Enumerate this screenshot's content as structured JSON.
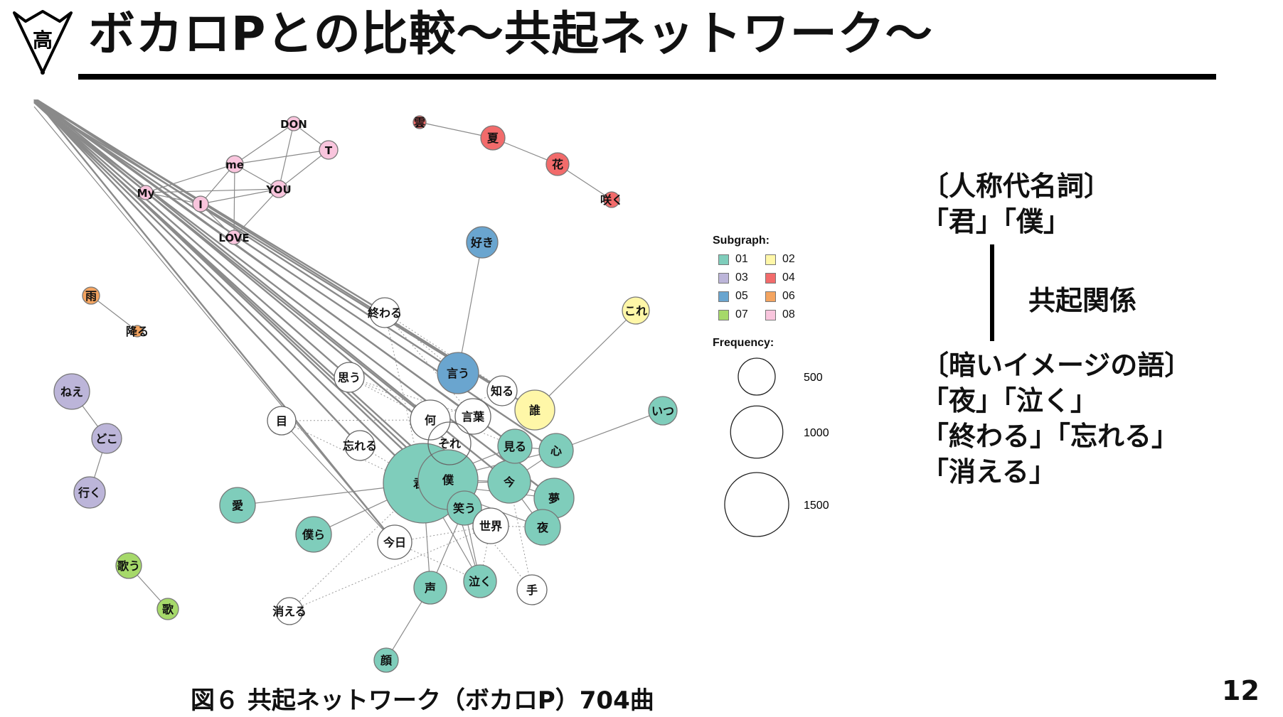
{
  "header": {
    "logo_char": "高",
    "title": "ボカロPとの比較〜共起ネットワーク〜"
  },
  "network": {
    "nodes": [
      {
        "id": "kimi",
        "label": "君",
        "group": "01"
      },
      {
        "id": "boku",
        "label": "僕",
        "group": "01"
      },
      {
        "id": "warau",
        "label": "笑う",
        "group": "01"
      },
      {
        "id": "ima",
        "label": "今",
        "group": "01"
      },
      {
        "id": "miru",
        "label": "見る",
        "group": "01"
      },
      {
        "id": "kokoro",
        "label": "心",
        "group": "01"
      },
      {
        "id": "yume",
        "label": "夢",
        "group": "01"
      },
      {
        "id": "yoru",
        "label": "夜",
        "group": "01"
      },
      {
        "id": "naku",
        "label": "泣く",
        "group": "01"
      },
      {
        "id": "koe",
        "label": "声",
        "group": "01"
      },
      {
        "id": "ai",
        "label": "愛",
        "group": "01"
      },
      {
        "id": "bokura",
        "label": "僕ら",
        "group": "01"
      },
      {
        "id": "itsu",
        "label": "いつ",
        "group": "01"
      },
      {
        "id": "kao",
        "label": "顔",
        "group": "01"
      },
      {
        "id": "dare",
        "label": "誰",
        "group": "02"
      },
      {
        "id": "kore",
        "label": "これ",
        "group": "02"
      },
      {
        "id": "nee",
        "label": "ねえ",
        "group": "03"
      },
      {
        "id": "doko",
        "label": "どこ",
        "group": "03"
      },
      {
        "id": "iku",
        "label": "行く",
        "group": "03"
      },
      {
        "id": "kumo",
        "label": "雲",
        "group": "04"
      },
      {
        "id": "natsu",
        "label": "夏",
        "group": "04"
      },
      {
        "id": "hana",
        "label": "花",
        "group": "04"
      },
      {
        "id": "saku",
        "label": "咲く",
        "group": "04"
      },
      {
        "id": "iu",
        "label": "言う",
        "group": "05"
      },
      {
        "id": "suki",
        "label": "好き",
        "group": "05"
      },
      {
        "id": "ame",
        "label": "雨",
        "group": "06"
      },
      {
        "id": "furu",
        "label": "降る",
        "group": "06"
      },
      {
        "id": "utau",
        "label": "歌う",
        "group": "07"
      },
      {
        "id": "uta",
        "label": "歌",
        "group": "07"
      },
      {
        "id": "don",
        "label": "DON",
        "group": "08"
      },
      {
        "id": "t",
        "label": "T",
        "group": "08"
      },
      {
        "id": "me",
        "label": "me",
        "group": "08"
      },
      {
        "id": "my",
        "label": "My",
        "group": "08"
      },
      {
        "id": "i",
        "label": "I",
        "group": "08"
      },
      {
        "id": "you",
        "label": "YOU",
        "group": "08"
      },
      {
        "id": "love",
        "label": "LOVE",
        "group": "08"
      },
      {
        "id": "owaru",
        "label": "終わる",
        "group": "none"
      },
      {
        "id": "omou",
        "label": "思う",
        "group": "none"
      },
      {
        "id": "shiru",
        "label": "知る",
        "group": "none"
      },
      {
        "id": "nani",
        "label": "何",
        "group": "none"
      },
      {
        "id": "kotoba",
        "label": "言葉",
        "group": "none"
      },
      {
        "id": "me_eye",
        "label": "目",
        "group": "none"
      },
      {
        "id": "wasureru",
        "label": "忘れる",
        "group": "none"
      },
      {
        "id": "sore",
        "label": "それ",
        "group": "none"
      },
      {
        "id": "sekai",
        "label": "世界",
        "group": "none"
      },
      {
        "id": "kyou",
        "label": "今日",
        "group": "none"
      },
      {
        "id": "te",
        "label": "手",
        "group": "none"
      },
      {
        "id": "kieru",
        "label": "消える",
        "group": "none"
      }
    ]
  },
  "legend": {
    "subgraph_title": "Subgraph:",
    "subgraphs": [
      {
        "label": "01",
        "color": "#7fcdbb"
      },
      {
        "label": "02",
        "color": "#fff7a8"
      },
      {
        "label": "03",
        "color": "#bcb5d9"
      },
      {
        "label": "04",
        "color": "#f26b6b"
      },
      {
        "label": "05",
        "color": "#6aa5cf"
      },
      {
        "label": "06",
        "color": "#f4a460"
      },
      {
        "label": "07",
        "color": "#a6d96a"
      },
      {
        "label": "08",
        "color": "#f9c5dd"
      }
    ],
    "frequency_title": "Frequency:",
    "frequency_levels": [
      {
        "label": "500",
        "value": 500
      },
      {
        "label": "1000",
        "value": 1000
      },
      {
        "label": "1500",
        "value": 1500
      }
    ]
  },
  "annotation": {
    "heading_pronouns": "〔人称代名詞〕",
    "pronouns": "「君」「僕」",
    "relation": "共起関係",
    "heading_dark": "〔暗いイメージの語〕",
    "dark_line1": "「夜」「泣く」",
    "dark_line2": "「終わる」「忘れる」",
    "dark_line3": "「消える」"
  },
  "caption": "図６ 共起ネットワーク（ボカロP）704曲",
  "page_number": "12"
}
